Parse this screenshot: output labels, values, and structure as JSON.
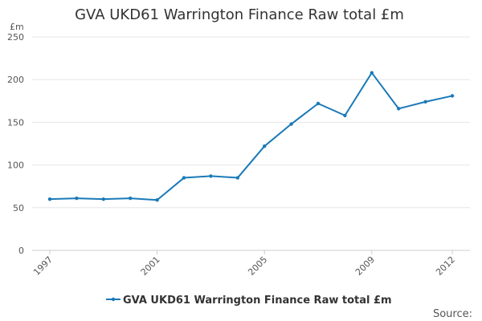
{
  "chart_data": {
    "type": "line",
    "title": "GVA UKD61 Warrington Finance Raw total £m",
    "ylabel": "£m",
    "xlabel": "",
    "ylim": [
      0,
      250
    ],
    "y_ticks": [
      0,
      50,
      100,
      150,
      200,
      250
    ],
    "x_ticks": [
      1997,
      2001,
      2005,
      2009,
      2012
    ],
    "grid": true,
    "legend_position": "bottom",
    "color": "#1a7ab8",
    "x": [
      1997,
      1998,
      1999,
      2000,
      2001,
      2002,
      2003,
      2004,
      2005,
      2006,
      2007,
      2008,
      2009,
      2010,
      2011,
      2012
    ],
    "series": [
      {
        "name": "GVA UKD61 Warrington Finance Raw total £m",
        "values": [
          60,
          61,
          60,
          61,
          59,
          85,
          87,
          85,
          122,
          148,
          172,
          158,
          208,
          166,
          174,
          181
        ]
      }
    ],
    "source_label": "Source:"
  }
}
